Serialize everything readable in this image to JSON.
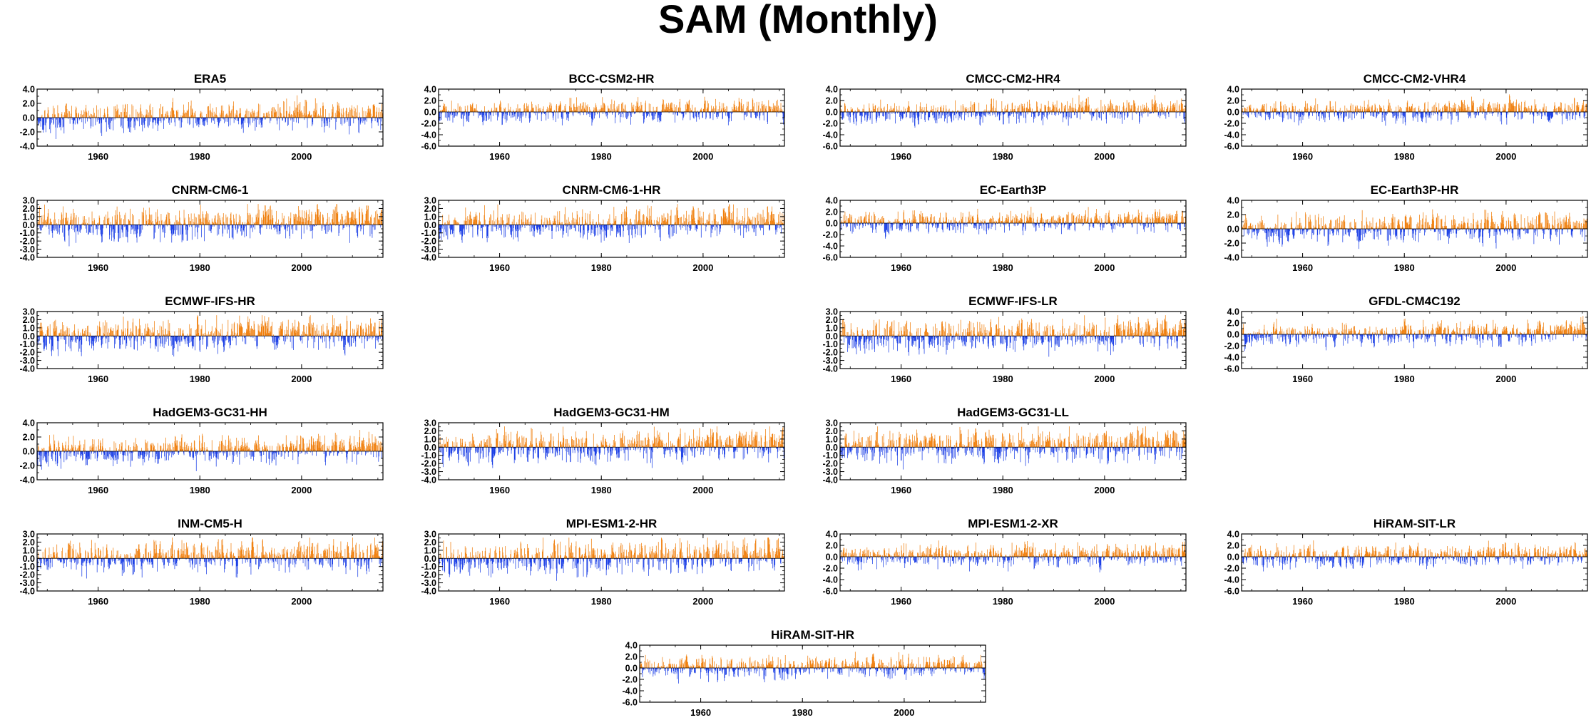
{
  "figure": {
    "title": "SAM (Monthly)",
    "colors": {
      "positive": "#f07f0d",
      "negative": "#1a3ee6",
      "axis": "#000000"
    }
  },
  "chart_data": [
    {
      "type": "bar",
      "title": "ERA5",
      "ylim": [
        -4,
        4
      ],
      "yticks": [
        "4.0",
        "2.0",
        "0.0",
        "-2.0",
        "-4.0"
      ],
      "xlim": [
        1948,
        2016
      ],
      "xticks": [
        "1960",
        "1980",
        "2000"
      ],
      "positive_color": "#f07f0d",
      "negative_color": "#1a3ee6",
      "values_note": "monthly anomalies, approx. range -3 to 2.5"
    },
    {
      "type": "bar",
      "title": "BCC-CSM2-HR",
      "ylim": [
        -6,
        4
      ],
      "yticks": [
        "4.0",
        "2.0",
        "0.0",
        "-2.0",
        "-4.0",
        "-6.0"
      ],
      "xlim": [
        1948,
        2016
      ],
      "xticks": [
        "1960",
        "1980",
        "2000"
      ],
      "positive_color": "#f07f0d",
      "negative_color": "#1a3ee6"
    },
    {
      "type": "bar",
      "title": "CMCC-CM2-HR4",
      "ylim": [
        -6,
        4
      ],
      "yticks": [
        "4.0",
        "2.0",
        "0.0",
        "-2.0",
        "-4.0",
        "-6.0"
      ],
      "xlim": [
        1948,
        2016
      ],
      "xticks": [
        "1960",
        "1980",
        "2000"
      ],
      "positive_color": "#f07f0d",
      "negative_color": "#1a3ee6"
    },
    {
      "type": "bar",
      "title": "CMCC-CM2-VHR4",
      "ylim": [
        -6,
        4
      ],
      "yticks": [
        "4.0",
        "2.0",
        "0.0",
        "-2.0",
        "-4.0",
        "-6.0"
      ],
      "xlim": [
        1948,
        2016
      ],
      "xticks": [
        "1960",
        "1980",
        "2000"
      ],
      "positive_color": "#f07f0d",
      "negative_color": "#1a3ee6"
    },
    {
      "type": "bar",
      "title": "CNRM-CM6-1",
      "ylim": [
        -4,
        3
      ],
      "yticks": [
        "3.0",
        "2.0",
        "1.0",
        "0.0",
        "-1.0",
        "-2.0",
        "-3.0",
        "-4.0"
      ],
      "xlim": [
        1948,
        2016
      ],
      "xticks": [
        "1960",
        "1980",
        "2000"
      ],
      "positive_color": "#f07f0d",
      "negative_color": "#1a3ee6"
    },
    {
      "type": "bar",
      "title": "CNRM-CM6-1-HR",
      "ylim": [
        -4,
        3
      ],
      "yticks": [
        "3.0",
        "2.0",
        "1.0",
        "0.0",
        "-1.0",
        "-2.0",
        "-3.0",
        "-4.0"
      ],
      "xlim": [
        1948,
        2016
      ],
      "xticks": [
        "1960",
        "1980",
        "2000"
      ],
      "positive_color": "#f07f0d",
      "negative_color": "#1a3ee6"
    },
    {
      "type": "bar",
      "title": "EC-Earth3P",
      "ylim": [
        -6,
        4
      ],
      "yticks": [
        "4.0",
        "2.0",
        "0.0",
        "-2.0",
        "-4.0",
        "-6.0"
      ],
      "xlim": [
        1948,
        2016
      ],
      "xticks": [
        "1960",
        "1980",
        "2000"
      ],
      "positive_color": "#f07f0d",
      "negative_color": "#1a3ee6"
    },
    {
      "type": "bar",
      "title": "EC-Earth3P-HR",
      "ylim": [
        -4,
        4
      ],
      "yticks": [
        "4.0",
        "2.0",
        "0.0",
        "-2.0",
        "-4.0"
      ],
      "xlim": [
        1948,
        2016
      ],
      "xticks": [
        "1960",
        "1980",
        "2000"
      ],
      "positive_color": "#f07f0d",
      "negative_color": "#1a3ee6"
    },
    {
      "type": "bar",
      "title": "ECMWF-IFS-HR",
      "ylim": [
        -4,
        3
      ],
      "yticks": [
        "3.0",
        "2.0",
        "1.0",
        "0.0",
        "-1.0",
        "-2.0",
        "-3.0",
        "-4.0"
      ],
      "xlim": [
        1948,
        2016
      ],
      "xticks": [
        "1960",
        "1980",
        "2000"
      ],
      "positive_color": "#f07f0d",
      "negative_color": "#1a3ee6"
    },
    {
      "type": "bar",
      "title": "ECMWF-IFS-LR",
      "ylim": [
        -4,
        3
      ],
      "yticks": [
        "3.0",
        "2.0",
        "1.0",
        "0.0",
        "-1.0",
        "-2.0",
        "-3.0",
        "-4.0"
      ],
      "xlim": [
        1948,
        2016
      ],
      "xticks": [
        "1960",
        "1980",
        "2000"
      ],
      "positive_color": "#f07f0d",
      "negative_color": "#1a3ee6"
    },
    {
      "type": "bar",
      "title": "GFDL-CM4C192",
      "ylim": [
        -6,
        4
      ],
      "yticks": [
        "4.0",
        "2.0",
        "0.0",
        "-2.0",
        "-4.0",
        "-6.0"
      ],
      "xlim": [
        1948,
        2016
      ],
      "xticks": [
        "1960",
        "1980",
        "2000"
      ],
      "positive_color": "#f07f0d",
      "negative_color": "#1a3ee6"
    },
    {
      "type": "bar",
      "title": "HadGEM3-GC31-HH",
      "ylim": [
        -4,
        4
      ],
      "yticks": [
        "4.0",
        "2.0",
        "0.0",
        "-2.0",
        "-4.0"
      ],
      "xlim": [
        1948,
        2016
      ],
      "xticks": [
        "1960",
        "1980",
        "2000"
      ],
      "positive_color": "#f07f0d",
      "negative_color": "#1a3ee6"
    },
    {
      "type": "bar",
      "title": "HadGEM3-GC31-HM",
      "ylim": [
        -4,
        3
      ],
      "yticks": [
        "3.0",
        "2.0",
        "1.0",
        "0.0",
        "-1.0",
        "-2.0",
        "-3.0",
        "-4.0"
      ],
      "xlim": [
        1948,
        2016
      ],
      "xticks": [
        "1960",
        "1980",
        "2000"
      ],
      "positive_color": "#f07f0d",
      "negative_color": "#1a3ee6"
    },
    {
      "type": "bar",
      "title": "HadGEM3-GC31-LL",
      "ylim": [
        -4,
        3
      ],
      "yticks": [
        "3.0",
        "2.0",
        "1.0",
        "0.0",
        "-1.0",
        "-2.0",
        "-3.0",
        "-4.0"
      ],
      "xlim": [
        1948,
        2016
      ],
      "xticks": [
        "1960",
        "1980",
        "2000"
      ],
      "positive_color": "#f07f0d",
      "negative_color": "#1a3ee6"
    },
    {
      "type": "bar",
      "title": "INM-CM5-H",
      "ylim": [
        -4,
        3
      ],
      "yticks": [
        "3.0",
        "2.0",
        "1.0",
        "0.0",
        "-1.0",
        "-2.0",
        "-3.0",
        "-4.0"
      ],
      "xlim": [
        1948,
        2016
      ],
      "xticks": [
        "1960",
        "1980",
        "2000"
      ],
      "positive_color": "#f07f0d",
      "negative_color": "#1a3ee6"
    },
    {
      "type": "bar",
      "title": "MPI-ESM1-2-HR",
      "ylim": [
        -4,
        3
      ],
      "yticks": [
        "3.0",
        "2.0",
        "1.0",
        "0.0",
        "-1.0",
        "-2.0",
        "-3.0",
        "-4.0"
      ],
      "xlim": [
        1948,
        2016
      ],
      "xticks": [
        "1960",
        "1980",
        "2000"
      ],
      "positive_color": "#f07f0d",
      "negative_color": "#1a3ee6"
    },
    {
      "type": "bar",
      "title": "MPI-ESM1-2-XR",
      "ylim": [
        -6,
        4
      ],
      "yticks": [
        "4.0",
        "2.0",
        "0.0",
        "-2.0",
        "-4.0",
        "-6.0"
      ],
      "xlim": [
        1948,
        2016
      ],
      "xticks": [
        "1960",
        "1980",
        "2000"
      ],
      "positive_color": "#f07f0d",
      "negative_color": "#1a3ee6"
    },
    {
      "type": "bar",
      "title": "HiRAM-SIT-LR",
      "ylim": [
        -6,
        4
      ],
      "yticks": [
        "4.0",
        "2.0",
        "0.0",
        "-2.0",
        "-4.0",
        "-6.0"
      ],
      "xlim": [
        1948,
        2016
      ],
      "xticks": [
        "1960",
        "1980",
        "2000"
      ],
      "positive_color": "#f07f0d",
      "negative_color": "#1a3ee6"
    },
    {
      "type": "bar",
      "title": "HiRAM-SIT-HR",
      "ylim": [
        -6,
        4
      ],
      "yticks": [
        "4.0",
        "2.0",
        "0.0",
        "-2.0",
        "-4.0",
        "-6.0"
      ],
      "xlim": [
        1948,
        2016
      ],
      "xticks": [
        "1960",
        "1980",
        "2000"
      ],
      "positive_color": "#f07f0d",
      "negative_color": "#1a3ee6"
    }
  ]
}
